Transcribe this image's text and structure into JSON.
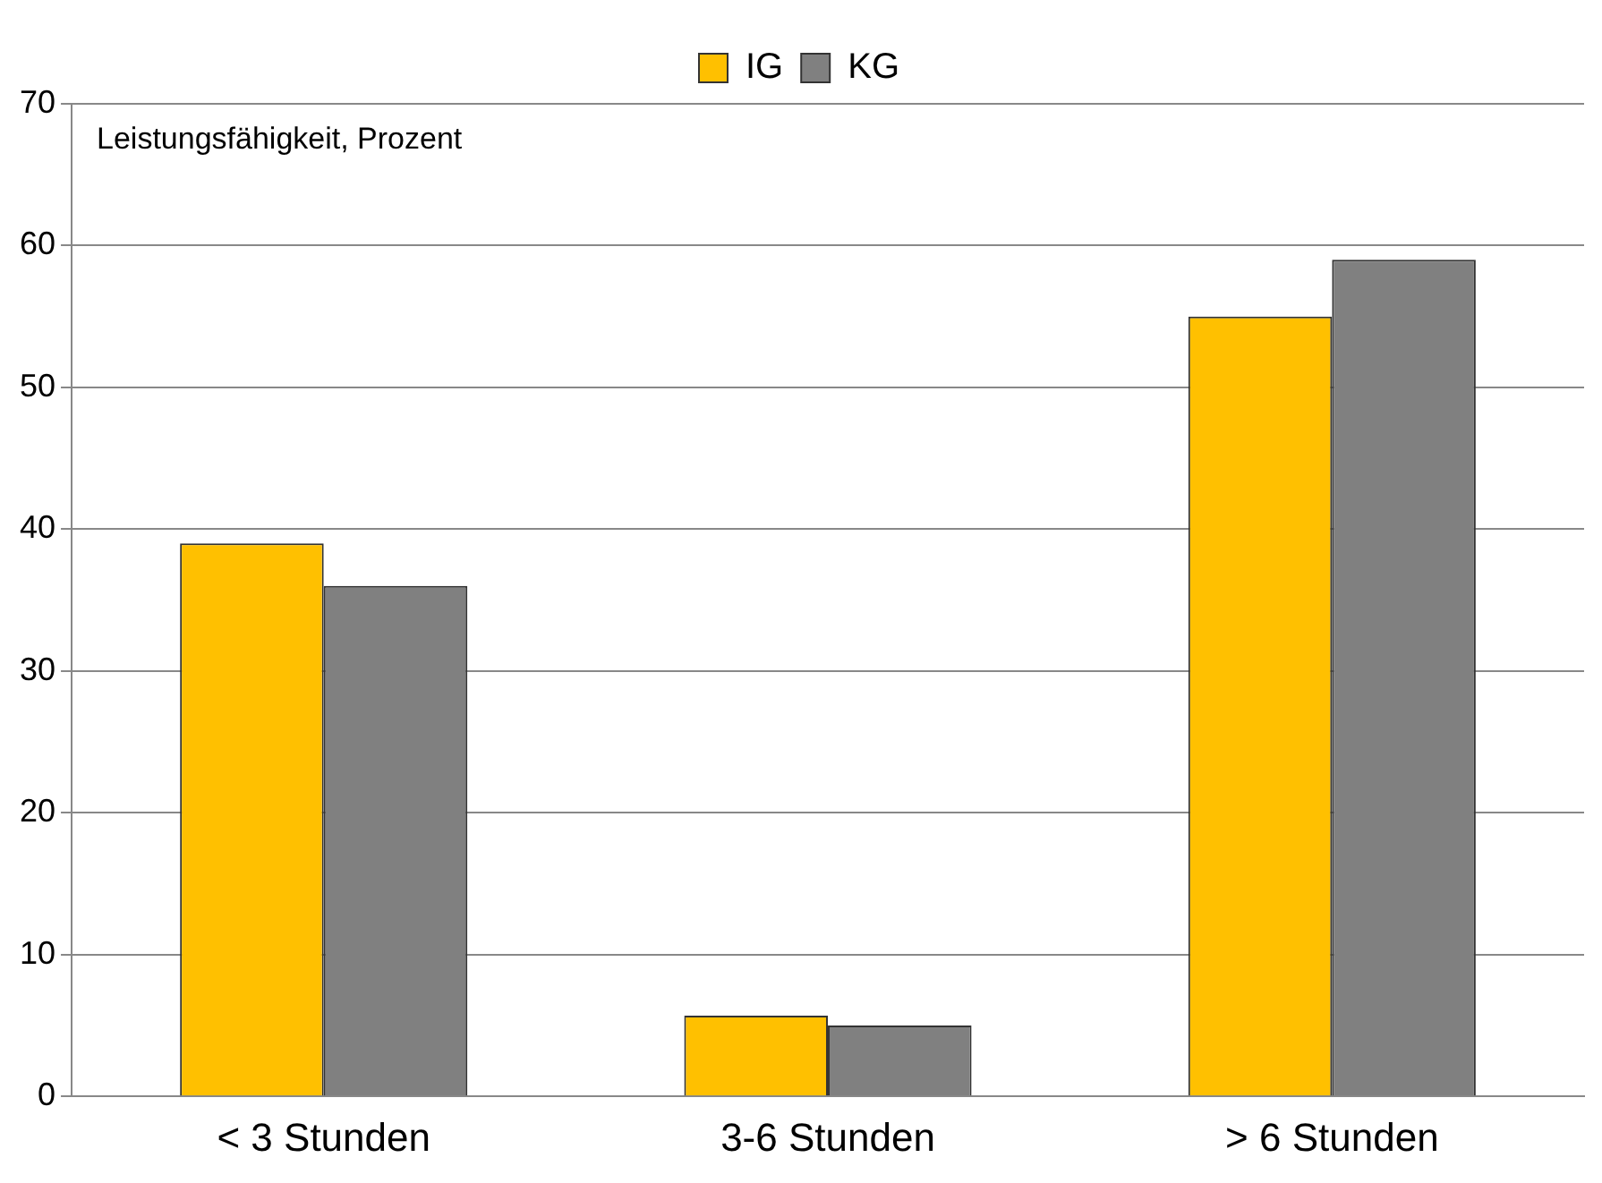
{
  "chart_data": {
    "type": "bar",
    "ylabel": "Leistungsfähigkeit, Prozent",
    "categories": [
      "< 3 Stunden",
      "3-6 Stunden",
      "> 6 Stunden"
    ],
    "series": [
      {
        "name": "IG",
        "color": "#ffc000",
        "values": [
          39,
          5.7,
          55
        ]
      },
      {
        "name": "KG",
        "color": "#808080",
        "values": [
          36,
          5,
          59
        ]
      }
    ],
    "ylim": [
      0,
      70
    ],
    "yticks": [
      0,
      10,
      20,
      30,
      40,
      50,
      60,
      70
    ],
    "grid": "y",
    "legend": "top"
  }
}
